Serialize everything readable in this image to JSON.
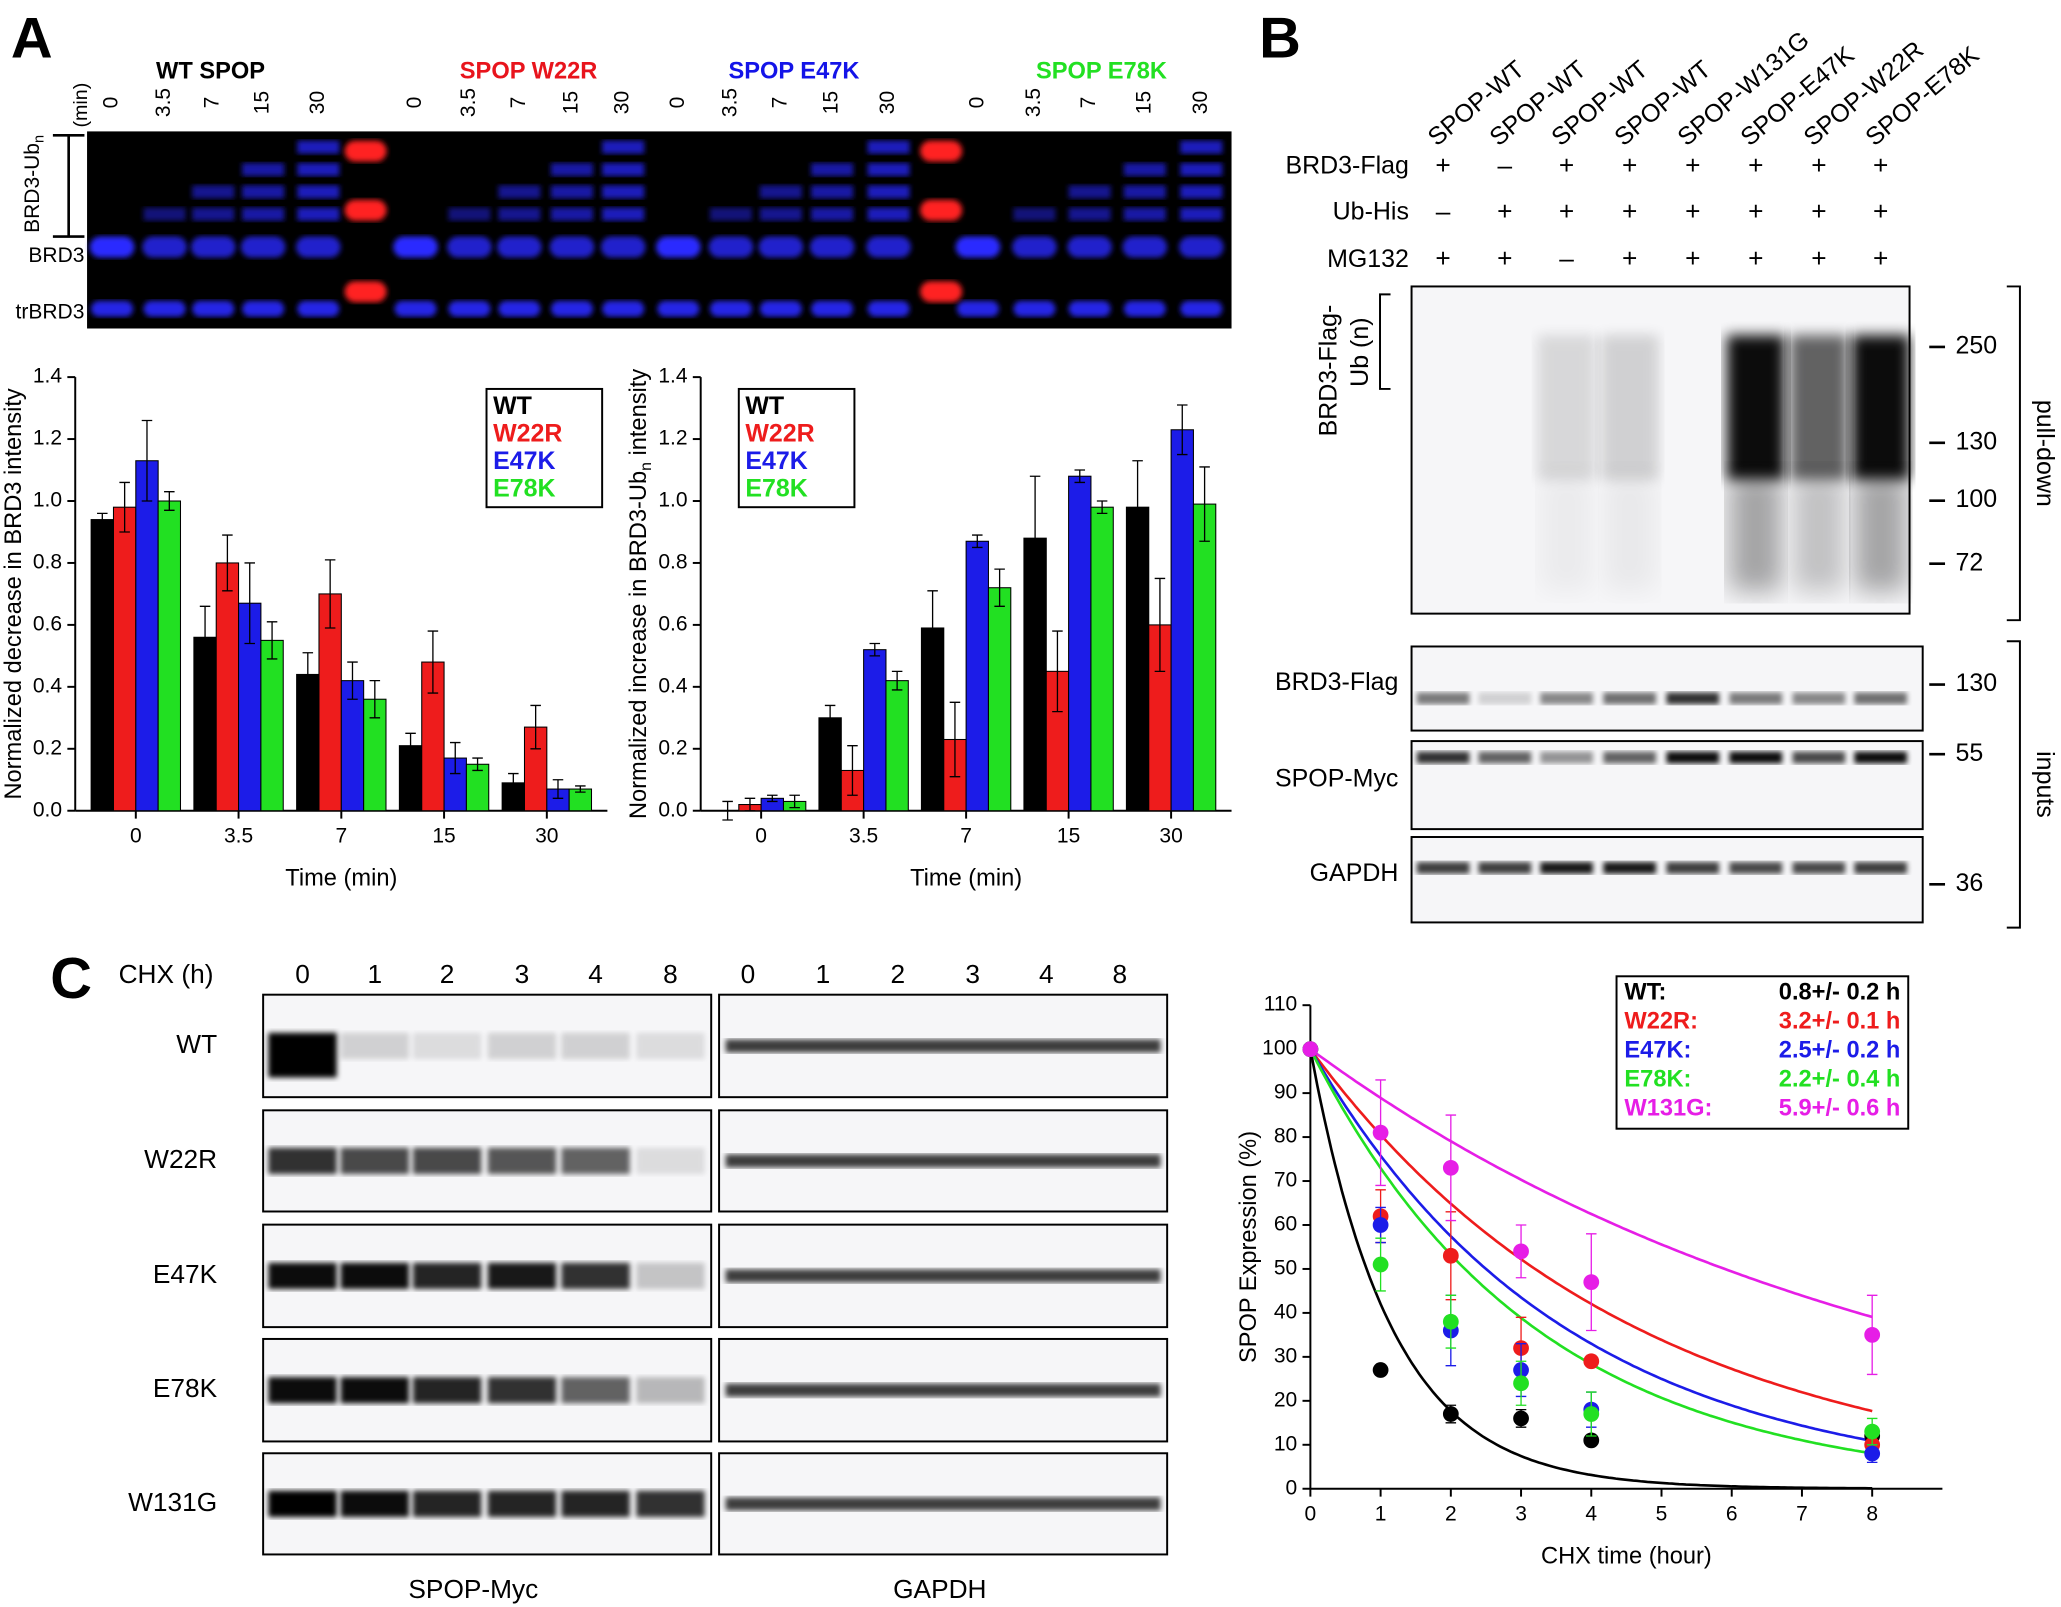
{
  "panel_labels": [
    "A",
    "B",
    "C"
  ],
  "gel_a": {
    "time_unit": "(min)",
    "groups": [
      {
        "name": "WT SPOP",
        "color": "#000000",
        "times": [
          "0",
          "3.5",
          "7",
          "15",
          "30"
        ]
      },
      {
        "name": "SPOP W22R",
        "color": "#e8141c",
        "times": [
          "0",
          "3.5",
          "7",
          "15",
          "30"
        ]
      },
      {
        "name": "SPOP E47K",
        "color": "#1414e8",
        "times": [
          "0",
          "3.5",
          "7",
          "15",
          "30"
        ]
      },
      {
        "name": "SPOP E78K",
        "color": "#22e022",
        "times": [
          "0",
          "3.5",
          "7",
          "15",
          "30"
        ]
      }
    ],
    "ub_label": {
      "text": "BRD3-Ub",
      "sub": "n"
    },
    "band_labels": [
      "BRD3",
      "trBRD3"
    ]
  },
  "blot_b": {
    "lanes": [
      "SPOP-WT",
      "SPOP-WT",
      "SPOP-WT",
      "SPOP-WT",
      "SPOP-W131G",
      "SPOP-E47K",
      "SPOP-W22R",
      "SPOP-E78K"
    ],
    "rows": [
      {
        "name": "BRD3-Flag",
        "signs": [
          "+",
          "–",
          "+",
          "+",
          "+",
          "+",
          "+",
          "+"
        ]
      },
      {
        "name": "Ub-His",
        "signs": [
          "–",
          "+",
          "+",
          "+",
          "+",
          "+",
          "+",
          "+"
        ]
      },
      {
        "name": "MG132",
        "signs": [
          "+",
          "+",
          "–",
          "+",
          "+",
          "+",
          "+",
          "+"
        ]
      }
    ],
    "pulldown_label": [
      "BRD3-Flag-",
      "Ub (n)"
    ],
    "pulldown_markers": [
      "250",
      "130",
      "100",
      "72"
    ],
    "input_rows": [
      "BRD3-Flag",
      "SPOP-Myc",
      "GAPDH"
    ],
    "input_markers": [
      "130",
      "55",
      "36"
    ],
    "side_labels": [
      "pull-down",
      "inputs"
    ]
  },
  "blot_c": {
    "treatment": "CHX (h)",
    "times": [
      "0",
      "1",
      "2",
      "3",
      "4",
      "8"
    ],
    "rows": [
      "WT",
      "W22R",
      "E47K",
      "E78K",
      "W131G"
    ],
    "panels": [
      "SPOP-Myc",
      "GAPDH"
    ]
  },
  "chart_data": [
    {
      "type": "bar",
      "xlabel": "Time (min)",
      "ylabel": {
        "text": "Normalized decrease in BRD3 intensity"
      },
      "categories": [
        "0",
        "3.5",
        "7",
        "15",
        "30"
      ],
      "ylim": [
        0,
        1.4
      ],
      "yticks": [
        {
          "value": 0,
          "label": "0.0"
        },
        0.2,
        0.4,
        0.6,
        0.8,
        {
          "value": 1,
          "label": "1.0"
        },
        1.2,
        1.4
      ],
      "legend": "upper right",
      "series": [
        {
          "name": "WT",
          "color": "#000000",
          "values": [
            0.94,
            0.56,
            0.44,
            0.21,
            0.09
          ],
          "errors": [
            0.02,
            0.1,
            0.07,
            0.04,
            0.03
          ]
        },
        {
          "name": "W22R",
          "color": "#ee1c1c",
          "values": [
            0.98,
            0.8,
            0.7,
            0.48,
            0.27
          ],
          "errors": [
            0.08,
            0.09,
            0.11,
            0.1,
            0.07
          ]
        },
        {
          "name": "E47K",
          "color": "#1c1ce8",
          "values": [
            1.13,
            0.67,
            0.42,
            0.17,
            0.07
          ],
          "errors": [
            0.13,
            0.13,
            0.06,
            0.05,
            0.03
          ]
        },
        {
          "name": "E78K",
          "color": "#22e022",
          "values": [
            1.0,
            0.55,
            0.36,
            0.15,
            0.07
          ],
          "errors": [
            0.03,
            0.06,
            0.06,
            0.02,
            0.01
          ]
        }
      ]
    },
    {
      "type": "bar",
      "xlabel": "Time (min)",
      "ylabel": {
        "text": "Normalized increase in BRD3-Ub",
        "sub": "n",
        "tail": " intensity"
      },
      "categories": [
        "0",
        "3.5",
        "7",
        "15",
        "30"
      ],
      "ylim": [
        0,
        1.4
      ],
      "yticks": [
        {
          "value": 0,
          "label": "0.0"
        },
        0.2,
        0.4,
        0.6,
        0.8,
        {
          "value": 1,
          "label": "1.0"
        },
        1.2,
        1.4
      ],
      "legend": "upper left",
      "series": [
        {
          "name": "WT",
          "color": "#000000",
          "values": [
            0.0,
            0.3,
            0.59,
            0.88,
            0.98
          ],
          "errors": [
            0.03,
            0.04,
            0.12,
            0.2,
            0.15
          ]
        },
        {
          "name": "W22R",
          "color": "#ee1c1c",
          "values": [
            0.02,
            0.13,
            0.23,
            0.45,
            0.6
          ],
          "errors": [
            0.02,
            0.08,
            0.12,
            0.13,
            0.15
          ]
        },
        {
          "name": "E47K",
          "color": "#1c1ce8",
          "values": [
            0.04,
            0.52,
            0.87,
            1.08,
            1.23
          ],
          "errors": [
            0.01,
            0.02,
            0.02,
            0.02,
            0.08
          ]
        },
        {
          "name": "E78K",
          "color": "#22e022",
          "values": [
            0.03,
            0.42,
            0.72,
            0.98,
            0.99
          ],
          "errors": [
            0.02,
            0.03,
            0.06,
            0.02,
            0.12
          ]
        }
      ]
    },
    {
      "type": "scatter",
      "xlabel": "CHX time (hour)",
      "ylabel": {
        "text": "SPOP Expression (%)"
      },
      "x": [
        0,
        1,
        2,
        3,
        4,
        8
      ],
      "xlim": [
        0,
        9
      ],
      "xticks": [
        0,
        1,
        2,
        3,
        4,
        5,
        6,
        7,
        8
      ],
      "ylim": [
        0,
        110
      ],
      "yticks": [
        0,
        10,
        20,
        30,
        40,
        50,
        60,
        70,
        80,
        90,
        100,
        110
      ],
      "legend": "upper right",
      "series": [
        {
          "name": "WT:",
          "color": "#000000",
          "values": [
            100,
            27,
            17,
            16,
            11,
            12
          ],
          "errors": [
            0,
            0,
            2,
            2,
            0,
            0
          ],
          "half_life": 0.8,
          "half_life_label": "0.8+/- 0.2 h"
        },
        {
          "name": "W22R:",
          "color": "#ee1c1c",
          "values": [
            100,
            62,
            53,
            32,
            29,
            10
          ],
          "errors": [
            0,
            6,
            10,
            7,
            0,
            3
          ],
          "half_life": 3.2,
          "half_life_label": "3.2+/- 0.1 h"
        },
        {
          "name": "E47K:",
          "color": "#1c1ce8",
          "values": [
            100,
            60,
            36,
            27,
            18,
            8
          ],
          "errors": [
            0,
            4,
            8,
            6,
            4,
            2
          ],
          "half_life": 2.5,
          "half_life_label": "2.5+/- 0.2 h"
        },
        {
          "name": "E78K:",
          "color": "#22e022",
          "values": [
            100,
            51,
            38,
            24,
            17,
            13
          ],
          "errors": [
            0,
            6,
            6,
            5,
            5,
            3
          ],
          "half_life": 2.2,
          "half_life_label": "2.2+/- 0.4 h"
        },
        {
          "name": "W131G:",
          "color": "#e61ee6",
          "values": [
            100,
            81,
            73,
            54,
            47,
            35
          ],
          "errors": [
            0,
            12,
            12,
            6,
            11,
            9
          ],
          "half_life": 5.9,
          "half_life_label": "5.9+/- 0.6 h"
        }
      ]
    }
  ]
}
